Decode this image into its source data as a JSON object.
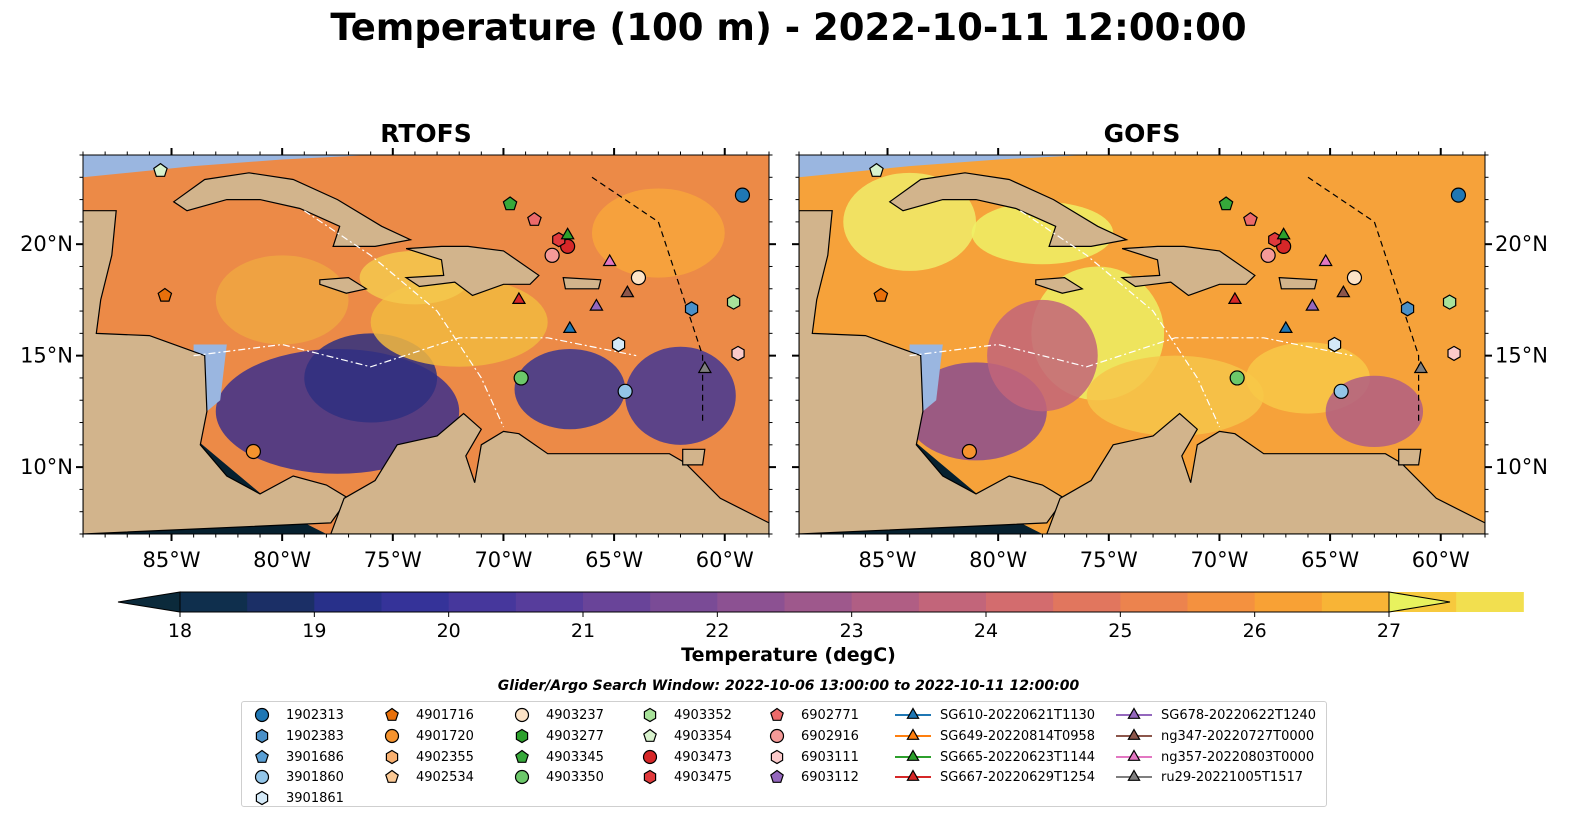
{
  "figure": {
    "title": "Temperature (100 m) - 2022-10-11 12:00:00",
    "panels": [
      "RTOFS",
      "GOFS"
    ],
    "lat_ticks": [
      "10°N",
      "15°N",
      "20°N"
    ],
    "lon_ticks": [
      "85°W",
      "80°W",
      "75°W",
      "70°W",
      "65°W",
      "60°W"
    ],
    "colors": {
      "land": "#d2b48c",
      "ocean_shelf": "#9ab6e0",
      "deep_dark": "#06202f"
    }
  },
  "colorbar": {
    "label": "Temperature (degC)",
    "ticks": [
      "18",
      "19",
      "20",
      "21",
      "22",
      "23",
      "24",
      "25",
      "26",
      "27"
    ],
    "vmin": 18,
    "vmax": 27,
    "step": 0.5,
    "extend": "both",
    "colors": [
      "#0b2a3b",
      "#0f2f4d",
      "#1b2f66",
      "#28308a",
      "#353399",
      "#46379c",
      "#573d9c",
      "#694499",
      "#7a4b96",
      "#8c5192",
      "#9e588c",
      "#b05e84",
      "#c2657a",
      "#d36c6e",
      "#e1765e",
      "#ec834e",
      "#f4913f",
      "#f8a135",
      "#f8b436",
      "#f7c93e",
      "#f2df4f",
      "#e8f25e"
    ]
  },
  "legend": {
    "title": "Glider/Argo Search Window: 2022-10-06 13:00:00 to 2022-10-11 12:00:00",
    "columns": [
      [
        {
          "label": "1902313",
          "marker": "circle",
          "color": "#1f77b4"
        },
        {
          "label": "1902383",
          "marker": "hexagon",
          "color": "#4a90c8"
        },
        {
          "label": "3901686",
          "marker": "pentagon",
          "color": "#5a9fd4"
        },
        {
          "label": "3901860",
          "marker": "circle",
          "color": "#93c5e8"
        },
        {
          "label": "3901861",
          "marker": "hexagon",
          "color": "#d4e9f7"
        }
      ],
      [
        {
          "label": "4901716",
          "marker": "pentagon",
          "color": "#e8700a"
        },
        {
          "label": "4901720",
          "marker": "circle",
          "color": "#f5932e"
        },
        {
          "label": "4902355",
          "marker": "hexagon",
          "color": "#f8b070"
        },
        {
          "label": "4902534",
          "marker": "pentagon",
          "color": "#fbc995"
        }
      ],
      [
        {
          "label": "4903237",
          "marker": "circle",
          "color": "#fde3c6"
        },
        {
          "label": "4903277",
          "marker": "hexagon",
          "color": "#2ca02c"
        },
        {
          "label": "4903345",
          "marker": "pentagon",
          "color": "#36a83a"
        },
        {
          "label": "4903350",
          "marker": "circle",
          "color": "#6cc86a"
        }
      ],
      [
        {
          "label": "4903352",
          "marker": "hexagon",
          "color": "#a8e29a"
        },
        {
          "label": "4903354",
          "marker": "pentagon",
          "color": "#d8f2cd"
        },
        {
          "label": "4903473",
          "marker": "circle",
          "color": "#d62728"
        },
        {
          "label": "4903475",
          "marker": "hexagon",
          "color": "#e03a3c"
        }
      ],
      [
        {
          "label": "6902771",
          "marker": "pentagon",
          "color": "#ec6a6a"
        },
        {
          "label": "6902916",
          "marker": "circle",
          "color": "#f59a98"
        },
        {
          "label": "6903111",
          "marker": "hexagon",
          "color": "#fbcaca"
        },
        {
          "label": "6903112",
          "marker": "pentagon",
          "color": "#9467bd"
        }
      ],
      [
        {
          "label": "SG610-20220621T1130",
          "marker": "triangle",
          "color": "#1f77b4"
        },
        {
          "label": "SG649-20220814T0958",
          "marker": "triangle",
          "color": "#ff7f0e"
        },
        {
          "label": "SG665-20220623T1144",
          "marker": "triangle",
          "color": "#2ca02c"
        },
        {
          "label": "SG667-20220629T1254",
          "marker": "triangle",
          "color": "#d62728"
        }
      ],
      [
        {
          "label": "SG678-20220622T1240",
          "marker": "triangle",
          "color": "#9467bd"
        },
        {
          "label": "ng347-20220727T0000",
          "marker": "triangle",
          "color": "#8c564b"
        },
        {
          "label": "ng357-20220803T0000",
          "marker": "triangle",
          "color": "#e377c2"
        },
        {
          "label": "ru29-20221005T1517",
          "marker": "triangle",
          "color": "#7f7f7f"
        }
      ]
    ]
  },
  "chart_data": {
    "type": "heatmap",
    "title": "Temperature (100 m) - 2022-10-11 12:00:00",
    "panels": [
      "RTOFS",
      "GOFS"
    ],
    "variable": "Temperature (degC)",
    "color_range": [
      18,
      27
    ],
    "lon_range": [
      -89,
      -58
    ],
    "lat_range": [
      7,
      24
    ],
    "observations": [
      {
        "id": "1902313",
        "lon": -59.2,
        "lat": 22.2
      },
      {
        "id": "3901860",
        "lon": -64.5,
        "lat": 13.4
      },
      {
        "id": "3901861",
        "lon": -64.8,
        "lat": 15.5
      },
      {
        "id": "1902383",
        "lon": -61.5,
        "lat": 17.1
      },
      {
        "id": "4901716",
        "lon": -85.3,
        "lat": 17.7
      },
      {
        "id": "4901720",
        "lon": -81.3,
        "lat": 10.7
      },
      {
        "id": "4903237",
        "lon": -63.9,
        "lat": 18.5
      },
      {
        "id": "4903345",
        "lon": -69.7,
        "lat": 21.8
      },
      {
        "id": "4903350",
        "lon": -69.2,
        "lat": 14.0
      },
      {
        "id": "4903352",
        "lon": -59.6,
        "lat": 17.4
      },
      {
        "id": "4903354",
        "lon": -85.5,
        "lat": 23.3
      },
      {
        "id": "4903473",
        "lon": -67.1,
        "lat": 19.9
      },
      {
        "id": "4903475",
        "lon": -67.5,
        "lat": 20.2
      },
      {
        "id": "6902771",
        "lon": -68.6,
        "lat": 21.1
      },
      {
        "id": "6902916",
        "lon": -67.8,
        "lat": 19.5
      },
      {
        "id": "6903111",
        "lon": -59.4,
        "lat": 15.1
      },
      {
        "id": "SG610-20220621T1130",
        "lon": -67.0,
        "lat": 16.2
      },
      {
        "id": "SG665-20220623T1144",
        "lon": -67.1,
        "lat": 20.4
      },
      {
        "id": "SG667-20220629T1254",
        "lon": -69.3,
        "lat": 17.5
      },
      {
        "id": "SG678-20220622T1240",
        "lon": -65.8,
        "lat": 17.2
      },
      {
        "id": "ng347-20220727T0000",
        "lon": -64.4,
        "lat": 17.8
      },
      {
        "id": "ng357-20220803T0000",
        "lon": -65.2,
        "lat": 19.2
      },
      {
        "id": "ru29-20221005T1517",
        "lon": -60.9,
        "lat": 14.4
      }
    ]
  }
}
